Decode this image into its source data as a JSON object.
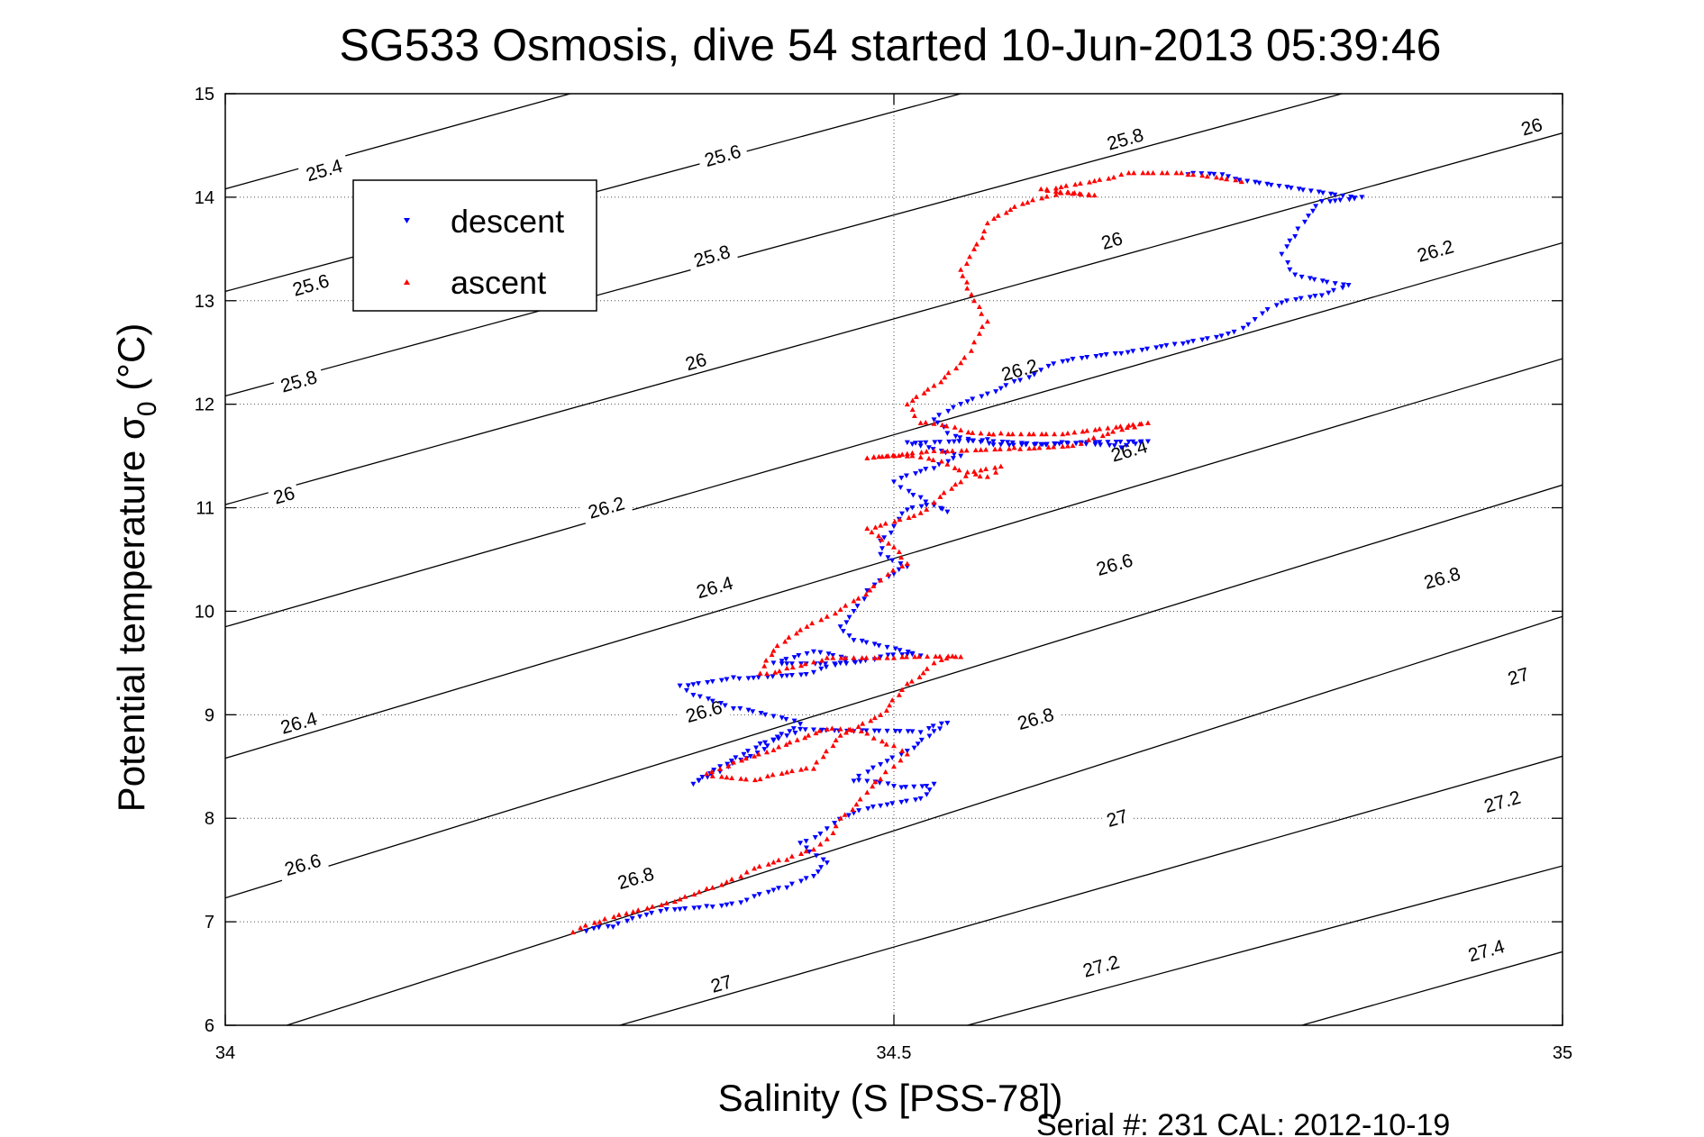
{
  "chart_data": {
    "type": "scatter",
    "title": "SG533 Osmosis, dive 54 started 10-Jun-2013 05:39:46",
    "xlabel": "Salinity (S [PSS-78])",
    "ylabel_main": "Potential temperature σ",
    "ylabel_sub": "0",
    "ylabel_unit": " (°C)",
    "xlim": [
      34,
      35
    ],
    "ylim": [
      6,
      15
    ],
    "x_ticks": [
      34,
      34.5,
      35
    ],
    "x_tick_labels": [
      "34",
      "34.5",
      "35"
    ],
    "y_ticks": [
      6,
      7,
      8,
      9,
      10,
      11,
      12,
      13,
      14,
      15
    ],
    "y_tick_labels": [
      "6",
      "7",
      "8",
      "9",
      "10",
      "11",
      "12",
      "13",
      "14",
      "15"
    ],
    "grid": "dotted",
    "legend": {
      "placement": "top-left",
      "entries": [
        "descent",
        "ascent"
      ]
    },
    "series": [
      {
        "name": "descent",
        "color": "#0000ff",
        "marker": "triangle-down",
        "path": [
          [
            34.27,
            6.91
          ],
          [
            34.29,
            6.95
          ],
          [
            34.31,
            7.05
          ],
          [
            34.33,
            7.12
          ],
          [
            34.36,
            7.15
          ],
          [
            34.39,
            7.21
          ],
          [
            34.42,
            7.33
          ],
          [
            34.44,
            7.44
          ],
          [
            34.45,
            7.57
          ],
          [
            34.43,
            7.76
          ],
          [
            34.45,
            7.9
          ],
          [
            34.47,
            8.05
          ],
          [
            34.49,
            8.12
          ],
          [
            34.52,
            8.19
          ],
          [
            34.53,
            8.33
          ],
          [
            34.5,
            8.31
          ],
          [
            34.47,
            8.36
          ],
          [
            34.49,
            8.52
          ],
          [
            34.51,
            8.65
          ],
          [
            34.53,
            8.84
          ],
          [
            34.54,
            8.92
          ],
          [
            34.52,
            8.83
          ],
          [
            34.47,
            8.84
          ],
          [
            34.43,
            8.86
          ],
          [
            34.41,
            8.75
          ],
          [
            34.39,
            8.58
          ],
          [
            34.37,
            8.45
          ],
          [
            34.35,
            8.33
          ],
          [
            34.37,
            8.5
          ],
          [
            34.4,
            8.72
          ],
          [
            34.43,
            8.91
          ],
          [
            34.38,
            9.06
          ],
          [
            34.35,
            9.19
          ],
          [
            34.34,
            9.28
          ],
          [
            34.38,
            9.36
          ],
          [
            34.44,
            9.41
          ],
          [
            34.47,
            9.52
          ],
          [
            34.44,
            9.61
          ],
          [
            34.41,
            9.5
          ],
          [
            34.46,
            9.5
          ],
          [
            34.49,
            9.56
          ],
          [
            34.52,
            9.57
          ],
          [
            34.47,
            9.72
          ],
          [
            34.46,
            9.85
          ],
          [
            34.47,
            10.0
          ],
          [
            34.48,
            10.2
          ],
          [
            34.5,
            10.36
          ],
          [
            34.51,
            10.43
          ],
          [
            34.49,
            10.55
          ],
          [
            34.49,
            10.68
          ],
          [
            34.5,
            10.82
          ],
          [
            34.51,
            10.98
          ],
          [
            34.53,
            11.03
          ],
          [
            34.54,
            10.96
          ],
          [
            34.52,
            11.1
          ],
          [
            34.5,
            11.25
          ],
          [
            34.53,
            11.38
          ],
          [
            34.55,
            11.5
          ],
          [
            34.51,
            11.63
          ],
          [
            34.57,
            11.66
          ],
          [
            34.62,
            11.62
          ],
          [
            34.67,
            11.58
          ],
          [
            34.69,
            11.64
          ],
          [
            34.64,
            11.63
          ],
          [
            34.58,
            11.61
          ],
          [
            34.54,
            11.72
          ],
          [
            34.53,
            11.85
          ],
          [
            34.55,
            12.0
          ],
          [
            34.57,
            12.1
          ],
          [
            34.59,
            12.22
          ],
          [
            34.61,
            12.33
          ],
          [
            34.63,
            12.42
          ],
          [
            34.67,
            12.49
          ],
          [
            34.71,
            12.58
          ],
          [
            34.75,
            12.68
          ],
          [
            34.77,
            12.82
          ],
          [
            34.79,
            12.98
          ],
          [
            34.82,
            13.05
          ],
          [
            34.84,
            13.15
          ],
          [
            34.8,
            13.25
          ],
          [
            34.79,
            13.45
          ],
          [
            34.8,
            13.62
          ],
          [
            34.81,
            13.82
          ],
          [
            34.82,
            13.96
          ],
          [
            34.85,
            14.0
          ],
          [
            34.75,
            14.2
          ],
          [
            34.72,
            14.22
          ]
        ]
      },
      {
        "name": "ascent",
        "color": "#ff0000",
        "marker": "triangle-up",
        "path": [
          [
            34.26,
            6.9
          ],
          [
            34.28,
            7.0
          ],
          [
            34.3,
            7.08
          ],
          [
            34.33,
            7.18
          ],
          [
            34.36,
            7.32
          ],
          [
            34.39,
            7.48
          ],
          [
            34.42,
            7.6
          ],
          [
            34.44,
            7.7
          ],
          [
            34.45,
            7.8
          ],
          [
            34.46,
            8.0
          ],
          [
            34.48,
            8.25
          ],
          [
            34.49,
            8.38
          ],
          [
            34.5,
            8.5
          ],
          [
            34.51,
            8.62
          ],
          [
            34.5,
            8.7
          ],
          [
            34.48,
            8.82
          ],
          [
            34.45,
            8.86
          ],
          [
            34.41,
            8.66
          ],
          [
            34.38,
            8.54
          ],
          [
            34.36,
            8.43
          ],
          [
            34.4,
            8.38
          ],
          [
            34.44,
            8.48
          ],
          [
            34.46,
            8.8
          ],
          [
            34.49,
            9.0
          ],
          [
            34.51,
            9.3
          ],
          [
            34.53,
            9.5
          ],
          [
            34.55,
            9.56
          ],
          [
            34.5,
            9.55
          ],
          [
            34.45,
            9.55
          ],
          [
            34.42,
            9.45
          ],
          [
            34.4,
            9.4
          ],
          [
            34.41,
            9.62
          ],
          [
            34.43,
            9.82
          ],
          [
            34.45,
            9.95
          ],
          [
            34.47,
            10.1
          ],
          [
            34.49,
            10.3
          ],
          [
            34.51,
            10.46
          ],
          [
            34.5,
            10.62
          ],
          [
            34.48,
            10.8
          ],
          [
            34.52,
            10.95
          ],
          [
            34.53,
            11.05
          ],
          [
            34.55,
            11.25
          ],
          [
            34.56,
            11.35
          ],
          [
            34.58,
            11.4
          ],
          [
            34.57,
            11.3
          ],
          [
            34.54,
            11.42
          ],
          [
            34.51,
            11.5
          ],
          [
            34.48,
            11.48
          ],
          [
            34.53,
            11.55
          ],
          [
            34.59,
            11.58
          ],
          [
            34.64,
            11.62
          ],
          [
            34.68,
            11.78
          ],
          [
            34.69,
            11.82
          ],
          [
            34.63,
            11.72
          ],
          [
            34.58,
            11.72
          ],
          [
            34.55,
            11.75
          ],
          [
            34.52,
            11.82
          ],
          [
            34.51,
            12.0
          ],
          [
            34.53,
            12.18
          ],
          [
            34.55,
            12.4
          ],
          [
            34.56,
            12.6
          ],
          [
            34.57,
            12.8
          ],
          [
            34.56,
            13.0
          ],
          [
            34.55,
            13.3
          ],
          [
            34.56,
            13.5
          ],
          [
            34.57,
            13.75
          ],
          [
            34.6,
            13.95
          ],
          [
            34.63,
            14.05
          ],
          [
            34.65,
            14.02
          ],
          [
            34.61,
            14.08
          ],
          [
            34.67,
            14.22
          ],
          [
            34.72,
            14.22
          ],
          [
            34.76,
            14.15
          ]
        ]
      }
    ],
    "contours": {
      "style": "solid",
      "color": "#000000",
      "lines": [
        [
          [
            34.0,
            14.08
          ],
          [
            34.258,
            15.0
          ]
        ],
        [
          [
            34.0,
            13.09
          ],
          [
            34.55,
            15.0
          ]
        ],
        [
          [
            34.0,
            12.08
          ],
          [
            34.835,
            15.0
          ]
        ],
        [
          [
            34.0,
            11.03
          ],
          [
            35.0,
            14.62
          ]
        ],
        [
          [
            34.0,
            9.85
          ],
          [
            35.0,
            13.56
          ]
        ],
        [
          [
            34.0,
            8.58
          ],
          [
            35.0,
            12.44
          ]
        ],
        [
          [
            34.0,
            7.23
          ],
          [
            35.0,
            11.22
          ]
        ],
        [
          [
            34.046,
            6.0
          ],
          [
            35.0,
            9.95
          ]
        ],
        [
          [
            34.295,
            6.0
          ],
          [
            35.0,
            8.6
          ]
        ],
        [
          [
            34.555,
            6.0
          ],
          [
            35.0,
            7.54
          ]
        ],
        [
          [
            34.805,
            6.0
          ],
          [
            35.0,
            6.71
          ]
        ]
      ],
      "labels": [
        {
          "text": "25.4",
          "x": 34.074,
          "y": 14.26
        },
        {
          "text": "25.6",
          "x": 34.064,
          "y": 13.15
        },
        {
          "text": "25.6",
          "x": 34.372,
          "y": 14.4
        },
        {
          "text": "25.8",
          "x": 34.055,
          "y": 12.22
        },
        {
          "text": "25.8",
          "x": 34.364,
          "y": 13.43
        },
        {
          "text": "25.8",
          "x": 34.673,
          "y": 14.56
        },
        {
          "text": "26",
          "x": 34.044,
          "y": 11.12
        },
        {
          "text": "26",
          "x": 34.352,
          "y": 12.41
        },
        {
          "text": "26",
          "x": 34.663,
          "y": 13.58
        },
        {
          "text": "26",
          "x": 34.977,
          "y": 14.68
        },
        {
          "text": "26.2",
          "x": 34.285,
          "y": 11.0
        },
        {
          "text": "26.2",
          "x": 34.594,
          "y": 12.33
        },
        {
          "text": "26.2",
          "x": 34.905,
          "y": 13.48
        },
        {
          "text": "26.4",
          "x": 34.055,
          "y": 8.92
        },
        {
          "text": "26.4",
          "x": 34.366,
          "y": 10.23
        },
        {
          "text": "26.4",
          "x": 34.676,
          "y": 11.55
        },
        {
          "text": "26.6",
          "x": 34.058,
          "y": 7.55
        },
        {
          "text": "26.6",
          "x": 34.358,
          "y": 9.03
        },
        {
          "text": "26.6",
          "x": 34.665,
          "y": 10.45
        },
        {
          "text": "26.8",
          "x": 34.307,
          "y": 7.42
        },
        {
          "text": "26.8",
          "x": 34.606,
          "y": 8.96
        },
        {
          "text": "26.8",
          "x": 34.91,
          "y": 10.32
        },
        {
          "text": "27",
          "x": 34.371,
          "y": 6.4
        },
        {
          "text": "27",
          "x": 34.667,
          "y": 8.0
        },
        {
          "text": "27",
          "x": 34.967,
          "y": 9.37
        },
        {
          "text": "27.2",
          "x": 34.655,
          "y": 6.57
        },
        {
          "text": "27.2",
          "x": 34.955,
          "y": 8.16
        },
        {
          "text": "27.4",
          "x": 34.943,
          "y": 6.72
        }
      ]
    }
  },
  "footer": {
    "serial": "Serial #: 231  CAL: 2012-10-19"
  }
}
